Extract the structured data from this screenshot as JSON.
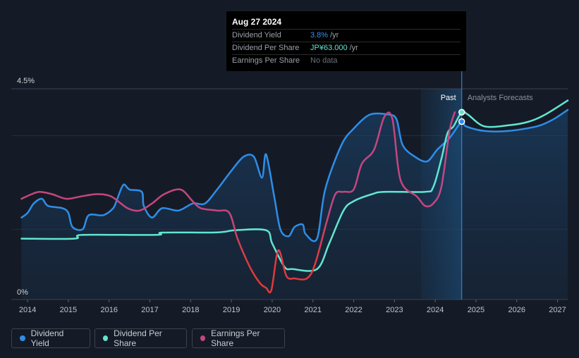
{
  "tooltip": {
    "date": "Aug 27 2024",
    "rows": [
      {
        "label": "Dividend Yield",
        "value": "3.8%",
        "unit": "/yr"
      },
      {
        "label": "Dividend Per Share",
        "value": "JP¥63.000",
        "unit": "/yr"
      },
      {
        "label": "Earnings Per Share",
        "value": "No data",
        "unit": ""
      }
    ]
  },
  "legend": {
    "items": [
      {
        "label": "Dividend Yield",
        "color": "#2e8ee8"
      },
      {
        "label": "Dividend Per Share",
        "color": "#62e5cf"
      },
      {
        "label": "Earnings Per Share",
        "color": "#c5467f"
      }
    ]
  },
  "chart_data": {
    "type": "line",
    "title": "",
    "y_top_label": "4.5%",
    "y_bottom_label": "0%",
    "ylim": [
      0,
      4.5
    ],
    "xlim": [
      2013.6,
      2027.25
    ],
    "x_ticks": [
      "2014",
      "2015",
      "2016",
      "2017",
      "2018",
      "2019",
      "2020",
      "2021",
      "2022",
      "2023",
      "2024",
      "2025",
      "2026",
      "2027"
    ],
    "x_tick_values": [
      2014,
      2015,
      2016,
      2017,
      2018,
      2019,
      2020,
      2021,
      2022,
      2023,
      2024,
      2025,
      2026,
      2027
    ],
    "past_label": "Past",
    "forecast_label": "Analysts Forecasts",
    "past_shade_start": 2023.65,
    "current_date": 2024.65,
    "highlight_points": [
      {
        "series": "Dividend Per Share",
        "x": 2024.65,
        "y": 4.0
      },
      {
        "series": "Dividend Yield",
        "x": 2024.65,
        "y": 3.8
      }
    ],
    "series": [
      {
        "name": "Dividend Yield",
        "color": "#2e8ee8",
        "fill": true,
        "points": [
          [
            2013.85,
            1.75
          ],
          [
            2014.0,
            1.85
          ],
          [
            2014.15,
            2.05
          ],
          [
            2014.35,
            2.15
          ],
          [
            2014.5,
            2.0
          ],
          [
            2014.85,
            1.95
          ],
          [
            2015.0,
            1.85
          ],
          [
            2015.1,
            1.55
          ],
          [
            2015.35,
            1.5
          ],
          [
            2015.5,
            1.8
          ],
          [
            2015.85,
            1.8
          ],
          [
            2016.1,
            1.95
          ],
          [
            2016.2,
            2.15
          ],
          [
            2016.35,
            2.45
          ],
          [
            2016.5,
            2.35
          ],
          [
            2016.8,
            2.3
          ],
          [
            2016.85,
            2.0
          ],
          [
            2017.05,
            1.75
          ],
          [
            2017.3,
            1.95
          ],
          [
            2017.7,
            1.9
          ],
          [
            2018.05,
            2.05
          ],
          [
            2018.35,
            2.05
          ],
          [
            2018.65,
            2.35
          ],
          [
            2019.0,
            2.75
          ],
          [
            2019.3,
            3.05
          ],
          [
            2019.55,
            3.05
          ],
          [
            2019.75,
            2.6
          ],
          [
            2019.85,
            3.1
          ],
          [
            2020.05,
            2.2
          ],
          [
            2020.2,
            1.5
          ],
          [
            2020.4,
            1.35
          ],
          [
            2020.55,
            1.55
          ],
          [
            2020.75,
            1.6
          ],
          [
            2020.82,
            1.4
          ],
          [
            2021.1,
            1.3
          ],
          [
            2021.3,
            2.35
          ],
          [
            2021.7,
            3.3
          ],
          [
            2022.0,
            3.65
          ],
          [
            2022.4,
            3.95
          ],
          [
            2022.85,
            3.95
          ],
          [
            2023.05,
            3.85
          ],
          [
            2023.2,
            3.3
          ],
          [
            2023.5,
            3.05
          ],
          [
            2023.8,
            2.95
          ],
          [
            2024.05,
            3.2
          ],
          [
            2024.35,
            3.45
          ],
          [
            2024.65,
            3.8
          ],
          [
            2024.75,
            3.7
          ],
          [
            2025.2,
            3.6
          ],
          [
            2025.8,
            3.6
          ],
          [
            2026.5,
            3.7
          ],
          [
            2026.9,
            3.85
          ],
          [
            2027.25,
            4.05
          ]
        ]
      },
      {
        "name": "Dividend Per Share",
        "color": "#62e5cf",
        "fill": false,
        "points": [
          [
            2013.85,
            1.3
          ],
          [
            2015.15,
            1.3
          ],
          [
            2015.35,
            1.38
          ],
          [
            2017.15,
            1.38
          ],
          [
            2017.3,
            1.43
          ],
          [
            2018.5,
            1.43
          ],
          [
            2018.85,
            1.45
          ],
          [
            2019.1,
            1.48
          ],
          [
            2019.85,
            1.48
          ],
          [
            2020.0,
            1.2
          ],
          [
            2020.3,
            0.7
          ],
          [
            2020.5,
            0.65
          ],
          [
            2021.1,
            0.65
          ],
          [
            2021.4,
            1.2
          ],
          [
            2021.75,
            1.9
          ],
          [
            2022.0,
            2.1
          ],
          [
            2022.45,
            2.25
          ],
          [
            2022.75,
            2.3
          ],
          [
            2023.75,
            2.3
          ],
          [
            2023.95,
            2.4
          ],
          [
            2024.15,
            3.0
          ],
          [
            2024.3,
            3.55
          ],
          [
            2024.45,
            3.7
          ],
          [
            2024.65,
            4.0
          ],
          [
            2024.8,
            3.95
          ],
          [
            2025.2,
            3.7
          ],
          [
            2025.8,
            3.72
          ],
          [
            2026.3,
            3.8
          ],
          [
            2026.7,
            3.95
          ],
          [
            2027.25,
            4.25
          ]
        ]
      },
      {
        "name": "Earnings Per Share",
        "color": "#c5467f",
        "color_low": "#e0393a",
        "fill": false,
        "points": [
          [
            2013.85,
            2.15
          ],
          [
            2014.1,
            2.25
          ],
          [
            2014.3,
            2.3
          ],
          [
            2014.6,
            2.25
          ],
          [
            2014.95,
            2.15
          ],
          [
            2015.3,
            2.2
          ],
          [
            2015.7,
            2.25
          ],
          [
            2016.05,
            2.2
          ],
          [
            2016.45,
            1.95
          ],
          [
            2016.75,
            1.9
          ],
          [
            2017.05,
            2.05
          ],
          [
            2017.35,
            2.25
          ],
          [
            2017.75,
            2.35
          ],
          [
            2018.05,
            2.1
          ],
          [
            2018.25,
            1.95
          ],
          [
            2018.65,
            1.9
          ],
          [
            2018.95,
            1.85
          ],
          [
            2019.15,
            1.3
          ],
          [
            2019.45,
            0.7
          ],
          [
            2019.7,
            0.35
          ],
          [
            2019.85,
            0.25
          ],
          [
            2019.98,
            0.2
          ],
          [
            2020.15,
            1.05
          ],
          [
            2020.35,
            0.5
          ],
          [
            2020.55,
            0.45
          ],
          [
            2020.85,
            0.45
          ],
          [
            2021.05,
            0.75
          ],
          [
            2021.35,
            1.7
          ],
          [
            2021.55,
            2.25
          ],
          [
            2021.75,
            2.3
          ],
          [
            2022.0,
            2.35
          ],
          [
            2022.2,
            2.9
          ],
          [
            2022.5,
            3.2
          ],
          [
            2022.75,
            3.9
          ],
          [
            2022.95,
            3.85
          ],
          [
            2023.15,
            2.55
          ],
          [
            2023.55,
            2.2
          ],
          [
            2023.75,
            2.0
          ],
          [
            2023.95,
            2.05
          ],
          [
            2024.15,
            2.4
          ],
          [
            2024.35,
            3.6
          ],
          [
            2024.48,
            4.0
          ]
        ]
      }
    ]
  }
}
